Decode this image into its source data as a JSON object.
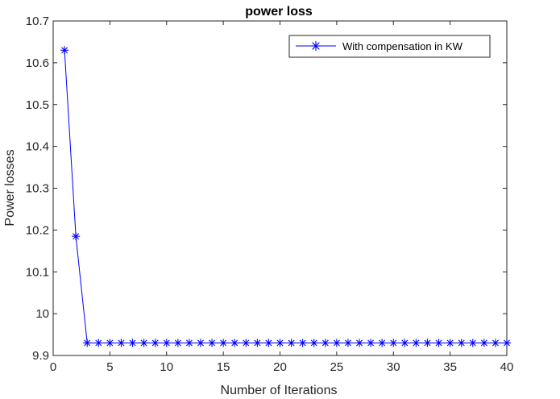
{
  "chart_data": {
    "type": "line",
    "title": "power loss",
    "xlabel": "Number of Iterations",
    "ylabel": "Power losses",
    "xlim": [
      0,
      40
    ],
    "ylim": [
      9.9,
      10.7
    ],
    "xticks": [
      0,
      5,
      10,
      15,
      20,
      25,
      30,
      35,
      40
    ],
    "yticks": [
      9.9,
      10,
      10.1,
      10.2,
      10.3,
      10.4,
      10.5,
      10.6,
      10.7
    ],
    "xtick_labels": [
      "0",
      "5",
      "10",
      "15",
      "20",
      "25",
      "30",
      "35",
      "40"
    ],
    "ytick_labels": [
      "9.9",
      "10",
      "10.1",
      "10.2",
      "10.3",
      "10.4",
      "10.5",
      "10.6",
      "10.7"
    ],
    "grid": false,
    "legend_position": "top-right",
    "series": [
      {
        "name": "With compensation in KW",
        "color": "#0000ff",
        "marker": "asterisk",
        "x": [
          1,
          2,
          3,
          4,
          5,
          6,
          7,
          8,
          9,
          10,
          11,
          12,
          13,
          14,
          15,
          16,
          17,
          18,
          19,
          20,
          21,
          22,
          23,
          24,
          25,
          26,
          27,
          28,
          29,
          30,
          31,
          32,
          33,
          34,
          35,
          36,
          37,
          38,
          39,
          40
        ],
        "y": [
          10.63,
          10.185,
          9.93,
          9.93,
          9.93,
          9.93,
          9.93,
          9.93,
          9.93,
          9.93,
          9.93,
          9.93,
          9.93,
          9.93,
          9.93,
          9.93,
          9.93,
          9.93,
          9.93,
          9.93,
          9.93,
          9.93,
          9.93,
          9.93,
          9.93,
          9.93,
          9.93,
          9.93,
          9.93,
          9.93,
          9.93,
          9.93,
          9.93,
          9.93,
          9.93,
          9.93,
          9.93,
          9.93,
          9.93,
          9.93
        ]
      }
    ]
  }
}
